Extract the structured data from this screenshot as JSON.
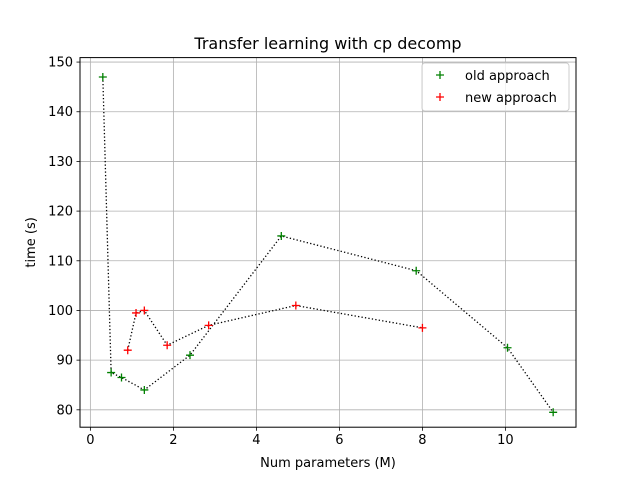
{
  "chart_data": {
    "type": "line",
    "title": "Transfer learning with cp decomp",
    "xlabel": "Num parameters (M)",
    "ylabel": "time (s)",
    "xlim": [
      -0.25,
      11.7
    ],
    "ylim": [
      76.5,
      150.9
    ],
    "xticks": [
      0,
      2,
      4,
      6,
      8,
      10
    ],
    "yticks": [
      80,
      90,
      100,
      110,
      120,
      130,
      140,
      150
    ],
    "xtick_labels": [
      "0",
      "2",
      "4",
      "6",
      "8",
      "10"
    ],
    "ytick_labels": [
      "80",
      "90",
      "100",
      "110",
      "120",
      "130",
      "140",
      "150"
    ],
    "grid": true,
    "legend_position": "top-right",
    "line_style": "dotted",
    "line_color": "#000000",
    "marker": "+",
    "series": [
      {
        "name": "old approach",
        "color": "#008000",
        "x": [
          0.3,
          0.5,
          0.75,
          1.3,
          2.4,
          4.6,
          7.85,
          10.05,
          11.15
        ],
        "y": [
          147.0,
          87.5,
          86.5,
          84.0,
          91.0,
          115.0,
          108.0,
          92.5,
          79.5
        ]
      },
      {
        "name": "new approach",
        "color": "#ff0000",
        "x": [
          0.9,
          1.1,
          1.3,
          1.85,
          2.85,
          4.95,
          8.0
        ],
        "y": [
          92.0,
          99.5,
          100.0,
          93.0,
          97.0,
          101.0,
          96.5
        ]
      }
    ]
  }
}
